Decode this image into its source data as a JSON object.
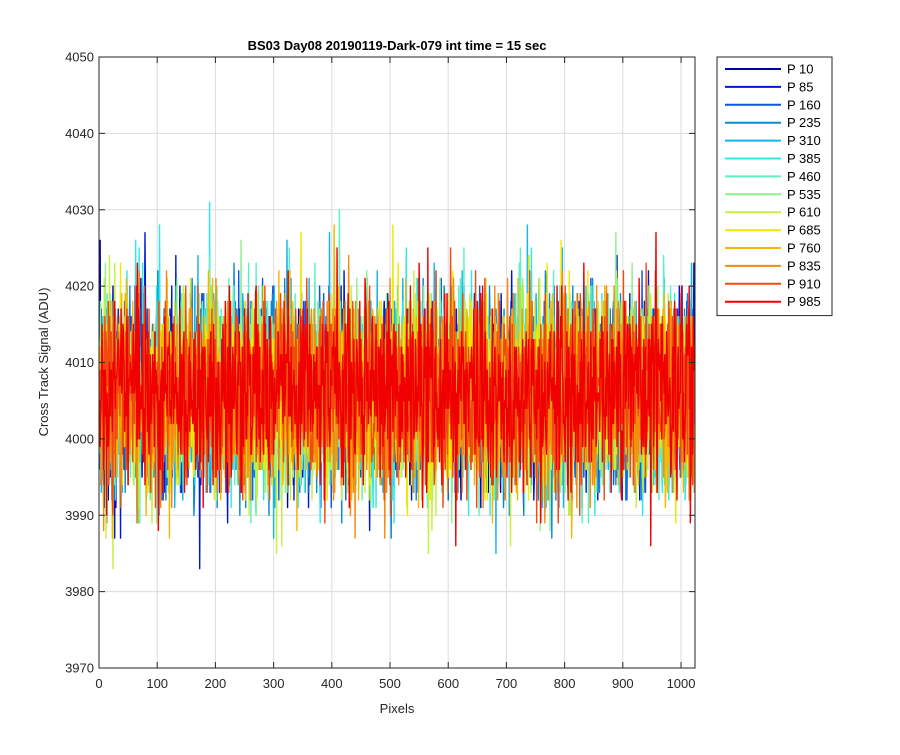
{
  "chart_data": {
    "type": "line",
    "title": "BS03 Day08 20190119-Dark-079 int time = 15 sec",
    "xlabel": "Pixels",
    "ylabel": "Cross Track Signal (ADU)",
    "xlim": [
      0,
      1024
    ],
    "ylim": [
      3970,
      4050
    ],
    "x_ticks": [
      0,
      100,
      200,
      300,
      400,
      500,
      600,
      700,
      800,
      900,
      1000
    ],
    "y_ticks": [
      3970,
      3980,
      3990,
      4000,
      4010,
      4020,
      4030,
      4040,
      4050
    ],
    "grid": true,
    "legend_position": "outside-right",
    "series": [
      {
        "name": "P 10",
        "color": "#0000aa",
        "mean": 4006,
        "values": [
          4016,
          4026,
          4003,
          4017,
          3998,
          3995,
          4001,
          4011,
          3991,
          4000,
          4002,
          4014,
          4017,
          4013,
          4002,
          3992,
          4009,
          3997,
          4001,
          4002,
          3999,
          4006,
          4008,
          4020,
          4007,
          4009,
          4004,
          3997,
          3991,
          4014,
          4002,
          4014,
          4003,
          4002,
          4002,
          4009,
          4002,
          4009,
          4009,
          4004,
          4002,
          4002,
          4004,
          4018,
          4012,
          4007,
          4011,
          4020,
          4010,
          4009,
          3997,
          4011,
          4018,
          4002,
          4016,
          4002,
          3998,
          4006,
          4002,
          4007,
          4000,
          4020,
          4007,
          4008,
          4011,
          4009,
          4009,
          4006,
          3996,
          4008,
          4008,
          4021,
          4002,
          3995,
          4005,
          4009,
          4006,
          3997,
          4008,
          4006,
          4015,
          4010,
          4011,
          4014,
          4007,
          4009,
          4003,
          4001,
          4009,
          4006,
          4010,
          3997,
          4009,
          4006,
          3996,
          4008,
          4007,
          4013,
          4016,
          4004,
          4008,
          4000,
          4009,
          4003,
          4005,
          4015,
          4009,
          3997,
          4006,
          3992,
          4011,
          4017,
          4004,
          4016,
          4007,
          3994,
          4009,
          4014,
          4003,
          4008,
          3997,
          4017,
          4014,
          4002,
          4010,
          4007,
          4015,
          4003,
          4003,
          4009,
          4006,
          4017,
          4006,
          4005,
          4001,
          3999,
          4009,
          4012,
          4020,
          4005,
          4014,
          3993,
          4013,
          4007,
          4008,
          4011,
          4001,
          4001,
          4012,
          4008,
          4002,
          4008,
          4011,
          4005,
          4013,
          4003,
          4004,
          4011,
          4007,
          4014,
          4006,
          4012,
          4011,
          4006,
          4008,
          4008,
          4004,
          4014,
          3999,
          4009,
          4013,
          4004,
          4009,
          4015,
          4017,
          4002,
          4019,
          4011,
          4015,
          4012,
          4006,
          4001,
          4014,
          4005,
          4007,
          4009,
          4007,
          4013,
          4005,
          4005,
          3993,
          4005,
          4006,
          4020,
          4006,
          4007,
          4006,
          4008,
          4012,
          4006,
          4008,
          4014,
          4016,
          3999,
          4004,
          4012,
          4004,
          4015,
          4003,
          4001,
          4000,
          4006,
          4014,
          3997,
          4003,
          4003,
          4006,
          4012,
          4015,
          4007,
          4007,
          4012,
          4009,
          4014,
          4003,
          4010,
          4007,
          4008,
          3998,
          4002,
          4016,
          4016,
          4008,
          4016,
          4001,
          4006,
          4004,
          4002,
          4003,
          4007,
          4008,
          4017,
          3998,
          4002,
          4011,
          4000,
          4004,
          4004,
          4001,
          4006,
          4009,
          4011,
          4009,
          4014,
          4009,
          4010,
          4009,
          4008,
          4002,
          4005,
          4002,
          4013,
          4010,
          4009,
          4003,
          4008,
          4012,
          3995,
          4008,
          4011,
          4002,
          4000,
          4004,
          4009,
          4016,
          4007,
          4010,
          4001,
          4014,
          4006,
          4015,
          4001,
          4010,
          4012,
          4007,
          4007,
          4002,
          4017,
          4000,
          4007,
          4003,
          4004,
          4008,
          3998,
          4000,
          4016,
          4009,
          4006,
          4008,
          4017,
          4000,
          4003,
          4014,
          4005,
          3995,
          4000,
          4001,
          4003,
          4016,
          4014,
          4006,
          4003,
          4006,
          4000,
          4007,
          4005,
          4005,
          4002,
          4005,
          4016,
          4001,
          4008,
          4010,
          3991,
          4004,
          4008,
          4015,
          4010,
          4004,
          4006,
          4009,
          4005,
          4001,
          3994,
          4006,
          4011,
          3996,
          4009,
          4004,
          4006,
          4003,
          4006,
          4017,
          4002,
          4001,
          4011,
          4000,
          3996,
          4003,
          4008,
          4007,
          4012,
          4013,
          4004,
          4000,
          4012,
          4009,
          4004,
          4005,
          4002,
          4003,
          4002,
          4001,
          4008,
          4004,
          4007,
          4011,
          4009,
          4010,
          4011,
          4007,
          4006,
          4007,
          4003,
          4012,
          4009,
          4015,
          4012,
          4010,
          3998,
          4008,
          4009,
          3999,
          4008,
          4006,
          4012,
          4006,
          4012,
          4008,
          4010,
          4009,
          4011,
          4009,
          4007,
          4013,
          4016,
          4008,
          4007,
          4013,
          3998,
          4009,
          4008,
          4011,
          4005,
          4002,
          4002,
          4017,
          4008,
          4011,
          4001,
          4011,
          4003,
          4008,
          4004,
          4009,
          4006,
          4003,
          4017,
          4010,
          4006,
          4005,
          4018,
          4008,
          4000,
          4002,
          4013,
          4015,
          4003,
          4014,
          3997,
          4004,
          4015,
          4008,
          4003,
          4005,
          3995,
          4013,
          4014,
          4008,
          4010,
          4002,
          4004,
          4000,
          4001,
          4011,
          4009,
          4015,
          4010,
          4013,
          4007,
          4011,
          4010,
          4001,
          4004,
          4006,
          4013,
          4004,
          4004,
          4008,
          4005,
          4007,
          4000,
          4012,
          4010,
          4003,
          4007,
          4018,
          4002,
          4006,
          4006,
          3999,
          3996,
          4013,
          4008,
          4008,
          4007,
          4003,
          4006,
          3998,
          4003,
          4012,
          4015,
          4008,
          4004,
          4010,
          3996,
          4010,
          4003,
          4015,
          4018,
          4010,
          4013,
          4009,
          4010,
          4006,
          4019,
          4015,
          4010,
          4006,
          4008,
          4009,
          4007,
          4009,
          4008,
          4006,
          4007,
          4004,
          4005,
          4012,
          4003,
          4006,
          4010,
          4012,
          4008,
          4006,
          4011,
          4007,
          4008,
          4003,
          4006,
          4008,
          4009,
          4001,
          4003,
          4011,
          4011,
          4003,
          4009,
          4003,
          4004,
          4004,
          4003,
          4017,
          3994,
          4000,
          4006,
          3994,
          4004,
          4014,
          4008,
          4008,
          4010,
          3999,
          4006,
          4010,
          4003,
          4007,
          4000,
          4003,
          4006,
          4004,
          4003,
          4003,
          4014,
          4009,
          4003,
          4007,
          4007,
          4005,
          4014,
          4014,
          4005,
          4009,
          4005,
          4009,
          4007,
          4008,
          4009,
          4007,
          4009,
          4009,
          4015,
          4006,
          4003,
          4005,
          4012,
          4004,
          4000,
          4013,
          4012,
          4007,
          4005,
          4012,
          4001,
          4007,
          4007,
          4010,
          4006,
          3997,
          4007,
          4013,
          4011,
          4012,
          4007,
          4006,
          4001,
          4006,
          4010,
          4002,
          4010,
          3996,
          4010,
          3998,
          4007,
          4012,
          4009,
          4010,
          4015,
          4009,
          4016,
          4008,
          4006,
          3996,
          3997,
          4005,
          4008,
          4005,
          4010,
          4005,
          4009,
          3997,
          3992,
          4007,
          4005,
          4005,
          4010,
          4007,
          4001,
          4006,
          4005,
          4011,
          4014,
          4007,
          4007,
          4001,
          4013,
          4001,
          4011,
          4010,
          4001,
          4004,
          4002,
          4000,
          4009,
          4019,
          4010,
          4009,
          4011,
          4010,
          4005,
          4003,
          4012,
          4011,
          4003,
          4008,
          3991,
          4013,
          4001,
          4007,
          4003,
          4016,
          4003,
          4004,
          4010,
          4008,
          4005,
          4011,
          4010,
          3993,
          4011,
          4003,
          4005,
          3998,
          4007,
          4004,
          4000,
          4011,
          4015,
          4011,
          4002,
          4008,
          4010,
          4006,
          4003,
          4008,
          4006,
          4015,
          4001,
          4005,
          3993,
          4015,
          4003,
          4003,
          4002,
          4013,
          3999,
          4011,
          4005,
          4000,
          4009,
          4008,
          4014,
          4010,
          4000,
          4002,
          4007,
          4012,
          4018,
          4010,
          4005,
          4003,
          4002,
          4003,
          4006,
          4003,
          4002,
          4008,
          4008,
          4003,
          3996,
          4007,
          4007,
          4006,
          4004,
          4009,
          4015,
          4011,
          3999,
          4005,
          4003,
          4005,
          4009,
          4011,
          4006,
          4013,
          4015,
          4004,
          4013,
          4005,
          4003,
          4007,
          4003,
          4015,
          4001,
          4003,
          4008,
          4006,
          4007,
          4005,
          4009,
          4014,
          4012,
          4014,
          4006,
          4008,
          4004,
          4008,
          4014,
          3997,
          4006,
          4011,
          4011,
          4009,
          4003,
          4005,
          4003,
          4013,
          4003,
          4009,
          4006,
          4008,
          4012,
          4008,
          4003,
          4010,
          3997,
          4002,
          4006,
          4012,
          4008,
          4009,
          4001,
          4007,
          4011,
          4012,
          4013,
          4015,
          4012,
          4015,
          4011,
          4005,
          4007,
          4004,
          4008,
          4005,
          4005,
          4015,
          4013,
          4006,
          4012,
          4012,
          4006,
          4008,
          4004,
          4005,
          4004,
          4008,
          4009,
          4000,
          4006,
          4013,
          4003,
          3996,
          4009,
          4009,
          4004,
          4005,
          4010,
          4010,
          4000,
          4001,
          4015,
          4003,
          4004,
          4018,
          4007,
          4003,
          4003,
          4014,
          3991,
          4010,
          3997,
          3997,
          4002,
          4012,
          4014,
          4006,
          4016,
          4016,
          4004,
          4014,
          4012,
          4006,
          4009,
          4006,
          4005,
          4005,
          4011,
          4004,
          4003,
          4016,
          4007,
          4011,
          4006,
          4000,
          4000,
          4012,
          4011,
          4009,
          4004,
          4006,
          4009,
          4009,
          4007,
          4010,
          4002,
          4004,
          4008,
          4010,
          4011,
          4011,
          4004,
          4017,
          4015,
          4009,
          4002,
          4011,
          4017,
          4010,
          4006,
          4004,
          4003,
          4014,
          4007,
          4006,
          4006,
          4000,
          4006,
          4013,
          4013,
          3996,
          4000,
          4013,
          4008,
          4003,
          4013,
          4014,
          4000,
          4014,
          4007,
          4011,
          4000,
          4004,
          4003,
          4005,
          4014,
          3998,
          3998,
          4003,
          4002,
          4014,
          4000,
          4004,
          4003,
          4012,
          4009,
          4006,
          4011,
          4009,
          4009,
          4011,
          4003,
          4013,
          4009,
          4004,
          4006,
          4005,
          4005,
          4011,
          4011,
          4006,
          4010,
          4011,
          4012,
          4004,
          4003,
          4018,
          4009,
          4009,
          4005,
          4003,
          4009,
          4003,
          4002,
          4006,
          4001,
          3998,
          4007,
          4004,
          4008,
          4008,
          4011,
          4009,
          4000,
          4012,
          4012,
          4015,
          4008,
          4003,
          4013,
          4001,
          4005,
          4009,
          4004,
          4005,
          4010,
          4007,
          4002,
          4015,
          3997,
          4009,
          4010,
          4009,
          4002,
          4006,
          4003,
          4006,
          4006,
          4012,
          4009,
          4012,
          4014,
          4018,
          4001,
          4006,
          4010,
          4007,
          4007,
          4011,
          4006,
          4010,
          4012,
          4005,
          4007,
          4005,
          4012,
          4007,
          4008,
          4009,
          4005,
          4007,
          4015,
          4004,
          4010,
          4006,
          4000,
          3995,
          4000,
          4006,
          4008,
          4001,
          4006,
          4000,
          4012,
          4008,
          4003,
          4005,
          4010,
          4011,
          4013,
          4011,
          4013,
          4008,
          4010,
          3999,
          4007,
          4004,
          4006,
          4011,
          4006,
          4000,
          4005,
          4005,
          4009,
          4018,
          4009,
          4006,
          4007,
          4011,
          4009,
          4002,
          4005,
          4006,
          4010,
          4001,
          3998,
          4009,
          4008,
          4007,
          4007,
          4002,
          4003,
          4015,
          4007,
          4004,
          4009,
          4007,
          4006,
          4010,
          4006,
          4008,
          4006,
          4005,
          4006,
          4003,
          4014,
          4010,
          4008,
          4014,
          4001,
          4006,
          4007,
          4006,
          4006,
          4011,
          4014,
          4004,
          4009,
          4010,
          4011,
          4012,
          4000,
          3999,
          4007,
          4006,
          4004,
          4002,
          4003,
          4010,
          4006,
          4007,
          4008,
          4001,
          4002,
          4007,
          4003,
          4016,
          4004,
          4007,
          4009,
          4002,
          4017,
          4007,
          4012,
          4012,
          4001,
          4010,
          4003,
          4005,
          4008,
          4012,
          4013,
          4008,
          4005,
          3996,
          4004,
          4008,
          4004,
          4014,
          4009,
          4006,
          3995,
          4007,
          4007,
          4004,
          4004,
          3999,
          4007
        ]
      },
      {
        "name": "P 85",
        "color": "#0018d4",
        "mean": 4006
      },
      {
        "name": "P 160",
        "color": "#0a56e0",
        "mean": 4006
      },
      {
        "name": "P 235",
        "color": "#0b88d6",
        "mean": 4006
      },
      {
        "name": "P 310",
        "color": "#16b4ec",
        "mean": 4006
      },
      {
        "name": "P 385",
        "color": "#2ce8e8",
        "mean": 4006
      },
      {
        "name": "P 460",
        "color": "#5cf0c4",
        "mean": 4006
      },
      {
        "name": "P 535",
        "color": "#8ef08e",
        "mean": 4006
      },
      {
        "name": "P 610",
        "color": "#c4f040",
        "mean": 4006
      },
      {
        "name": "P 685",
        "color": "#f0e800",
        "mean": 4006
      },
      {
        "name": "P 760",
        "color": "#f4b800",
        "mean": 4006
      },
      {
        "name": "P 835",
        "color": "#f48a10",
        "mean": 4006
      },
      {
        "name": "P 910",
        "color": "#f04a10",
        "mean": 4006
      },
      {
        "name": "P 985",
        "color": "#f00000",
        "mean": 4006
      }
    ]
  }
}
